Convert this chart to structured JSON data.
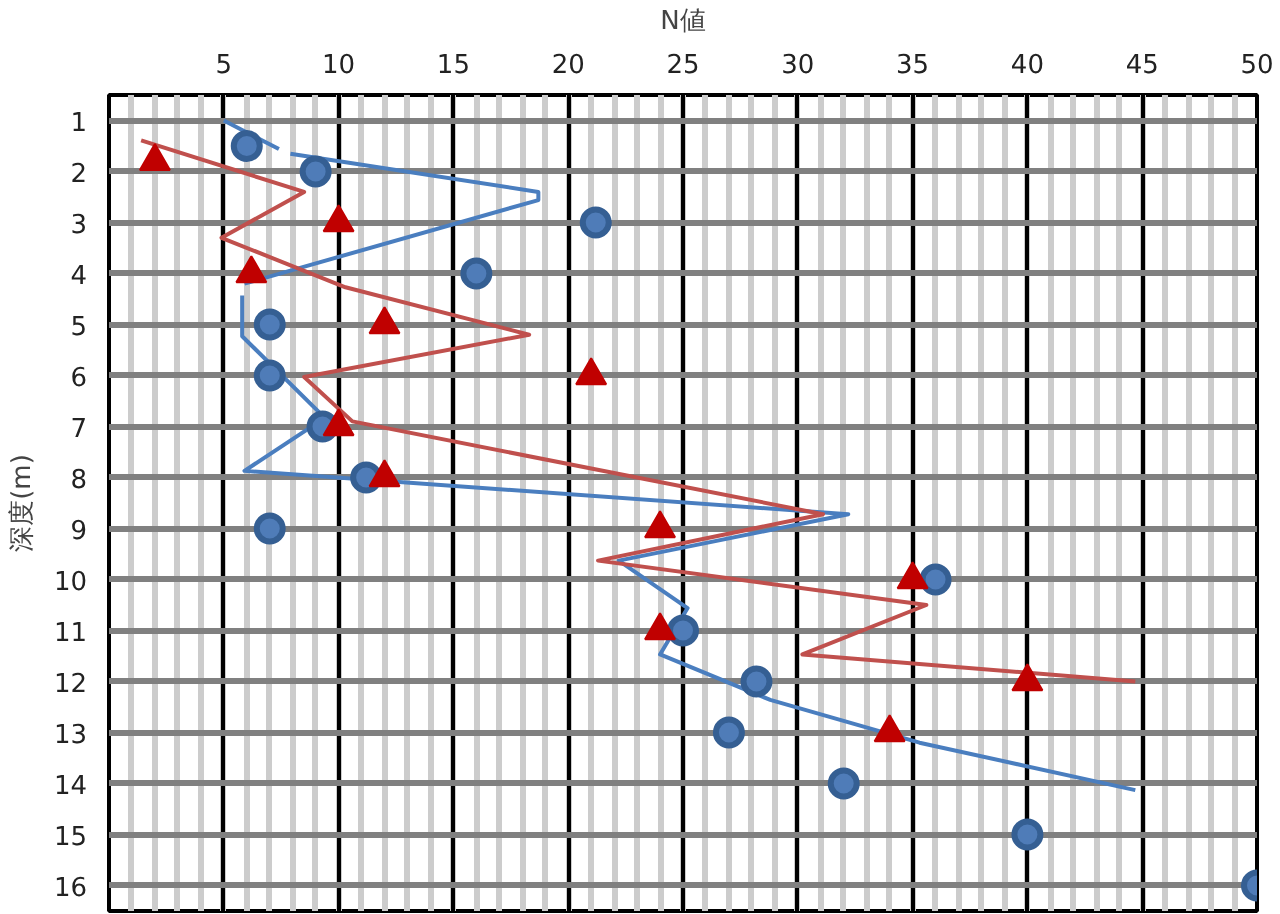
{
  "chart_data": {
    "type": "scatter",
    "xlabel": "N値",
    "ylabel": "深度(m)",
    "xlim": [
      0,
      50
    ],
    "ylim": [
      16.5,
      0.5
    ],
    "xticks": [
      5,
      10,
      15,
      20,
      25,
      30,
      35,
      40,
      45,
      50
    ],
    "yticks": [
      1,
      2,
      3,
      4,
      5,
      6,
      7,
      8,
      9,
      10,
      11,
      12,
      13,
      14,
      15,
      16
    ],
    "grid": true,
    "series": [
      {
        "type": "line",
        "color": "#4a7ebf",
        "marker": "none",
        "line_style": "solid",
        "x": [
          5,
          7.4,
          null,
          7.9,
          18.7,
          18.7,
          5.9,
          null,
          5.8,
          5.8,
          9.4,
          5.9,
          32.2,
          22.2,
          25.2,
          24,
          28.8,
          35.3,
          44.7
        ],
        "values": [
          1,
          1.56,
          null,
          1.65,
          2.4,
          2.56,
          4.2,
          null,
          4.43,
          5.23,
          6.83,
          7.87,
          8.72,
          9.63,
          10.56,
          11.47,
          12.36,
          13.2,
          14.13
        ]
      },
      {
        "type": "line",
        "color": "#c0504d",
        "marker": "none",
        "line_style": "solid",
        "x": [
          1.4,
          8.5,
          4.9,
          10.3,
          18.3,
          8.5,
          10.6,
          31.1,
          21.3,
          35.6,
          30.2,
          44.7
        ],
        "values": [
          1.39,
          2.4,
          3.3,
          4.27,
          5.2,
          6.03,
          6.9,
          8.72,
          9.63,
          10.5,
          11.47,
          12.0
        ]
      },
      {
        "color": "#355f93",
        "marker": "circle",
        "x": [
          6,
          9,
          21.2,
          16,
          7,
          7,
          9.3,
          11.2,
          7,
          36,
          25,
          28.2,
          27,
          32,
          40,
          50
        ],
        "values": [
          1.5,
          2,
          3,
          4,
          5,
          6,
          7,
          8,
          9,
          10,
          11,
          12,
          13,
          14,
          15,
          16
        ]
      },
      {
        "color": "#c00000",
        "marker": "triangle",
        "x": [
          2,
          10,
          6.2,
          12,
          21,
          10,
          12,
          24,
          35,
          24,
          40,
          34
        ],
        "values": [
          1.8,
          3,
          4,
          5,
          6,
          7,
          8,
          9,
          10,
          11,
          12,
          13
        ]
      }
    ]
  }
}
